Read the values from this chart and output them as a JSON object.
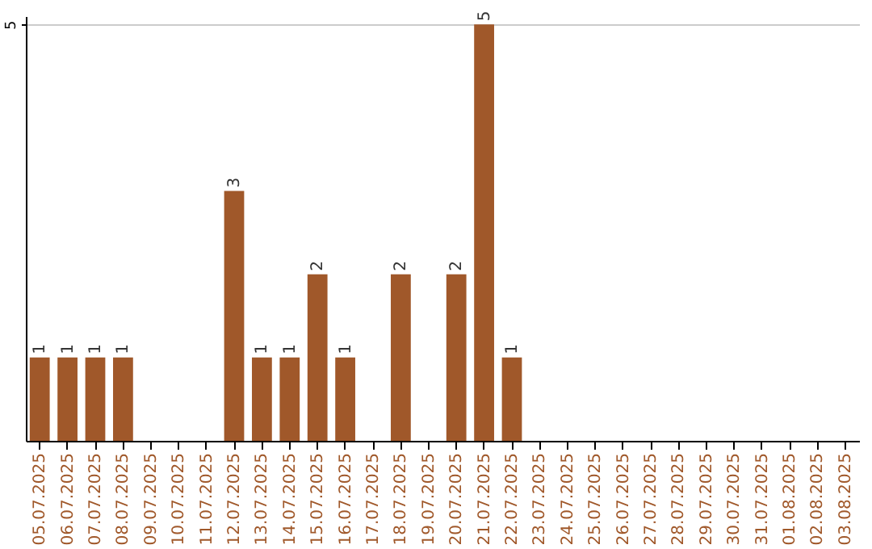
{
  "chart_data": {
    "type": "bar",
    "categories": [
      "05.07.2025",
      "06.07.2025",
      "07.07.2025",
      "08.07.2025",
      "09.07.2025",
      "10.07.2025",
      "11.07.2025",
      "12.07.2025",
      "13.07.2025",
      "14.07.2025",
      "15.07.2025",
      "16.07.2025",
      "17.07.2025",
      "18.07.2025",
      "19.07.2025",
      "20.07.2025",
      "21.07.2025",
      "22.07.2025",
      "23.07.2025",
      "24.07.2025",
      "25.07.2025",
      "26.07.2025",
      "27.07.2025",
      "28.07.2025",
      "29.07.2025",
      "30.07.2025",
      "31.07.2025",
      "01.08.2025",
      "02.08.2025",
      "03.08.2025"
    ],
    "values": [
      1,
      1,
      1,
      1,
      0,
      0,
      0,
      3,
      1,
      1,
      2,
      1,
      0,
      2,
      0,
      2,
      5,
      1,
      0,
      0,
      0,
      0,
      0,
      0,
      0,
      0,
      0,
      0,
      0,
      0
    ],
    "value_labels": [
      "1",
      "1",
      "1",
      "1",
      null,
      null,
      null,
      "3",
      "1",
      "1",
      "2",
      "1",
      null,
      "2",
      null,
      "2",
      "5",
      "1",
      null,
      null,
      null,
      null,
      null,
      null,
      null,
      null,
      null,
      null,
      null,
      null
    ],
    "color": "#a0582a",
    "ylim": [
      0,
      5.1
    ],
    "yticks": [
      5
    ],
    "grid": "y"
  }
}
